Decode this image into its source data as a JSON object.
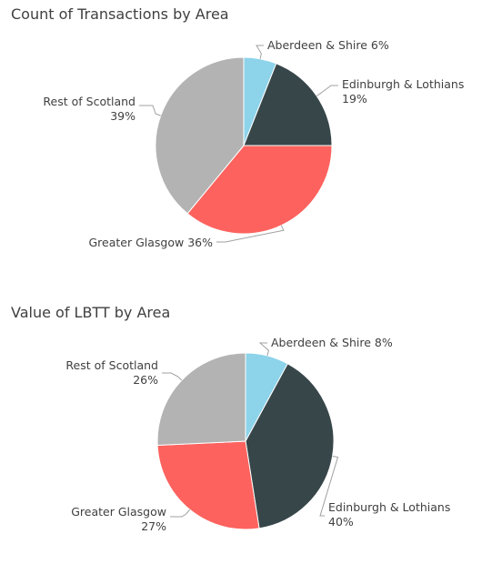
{
  "chart_data": [
    {
      "type": "pie",
      "title": "Count of Transactions by Area",
      "start_angle_deg": 0,
      "direction": "clockwise",
      "slices": [
        {
          "label": "Aberdeen & Shire",
          "value": 6,
          "pct": "6%",
          "color": "#8DD3EA"
        },
        {
          "label": "Edinburgh & Lothians",
          "value": 19,
          "pct": "19%",
          "color": "#374649"
        },
        {
          "label": "Greater Glasgow",
          "value": 36,
          "pct": "36%",
          "color": "#FD625E"
        },
        {
          "label": "Rest of Scotland",
          "value": 39,
          "pct": "39%",
          "color": "#B3B3B3"
        }
      ]
    },
    {
      "type": "pie",
      "title": "Value of LBTT by Area",
      "start_angle_deg": 0,
      "direction": "clockwise",
      "slices": [
        {
          "label": "Aberdeen & Shire",
          "value": 8,
          "pct": "8%",
          "color": "#8DD3EA"
        },
        {
          "label": "Edinburgh & Lothians",
          "value": 40,
          "pct": "40%",
          "color": "#374649"
        },
        {
          "label": "Greater Glasgow",
          "value": 27,
          "pct": "27%",
          "color": "#FD625E"
        },
        {
          "label": "Rest of Scotland",
          "value": 26,
          "pct": "26%",
          "color": "#B3B3B3"
        }
      ]
    }
  ]
}
